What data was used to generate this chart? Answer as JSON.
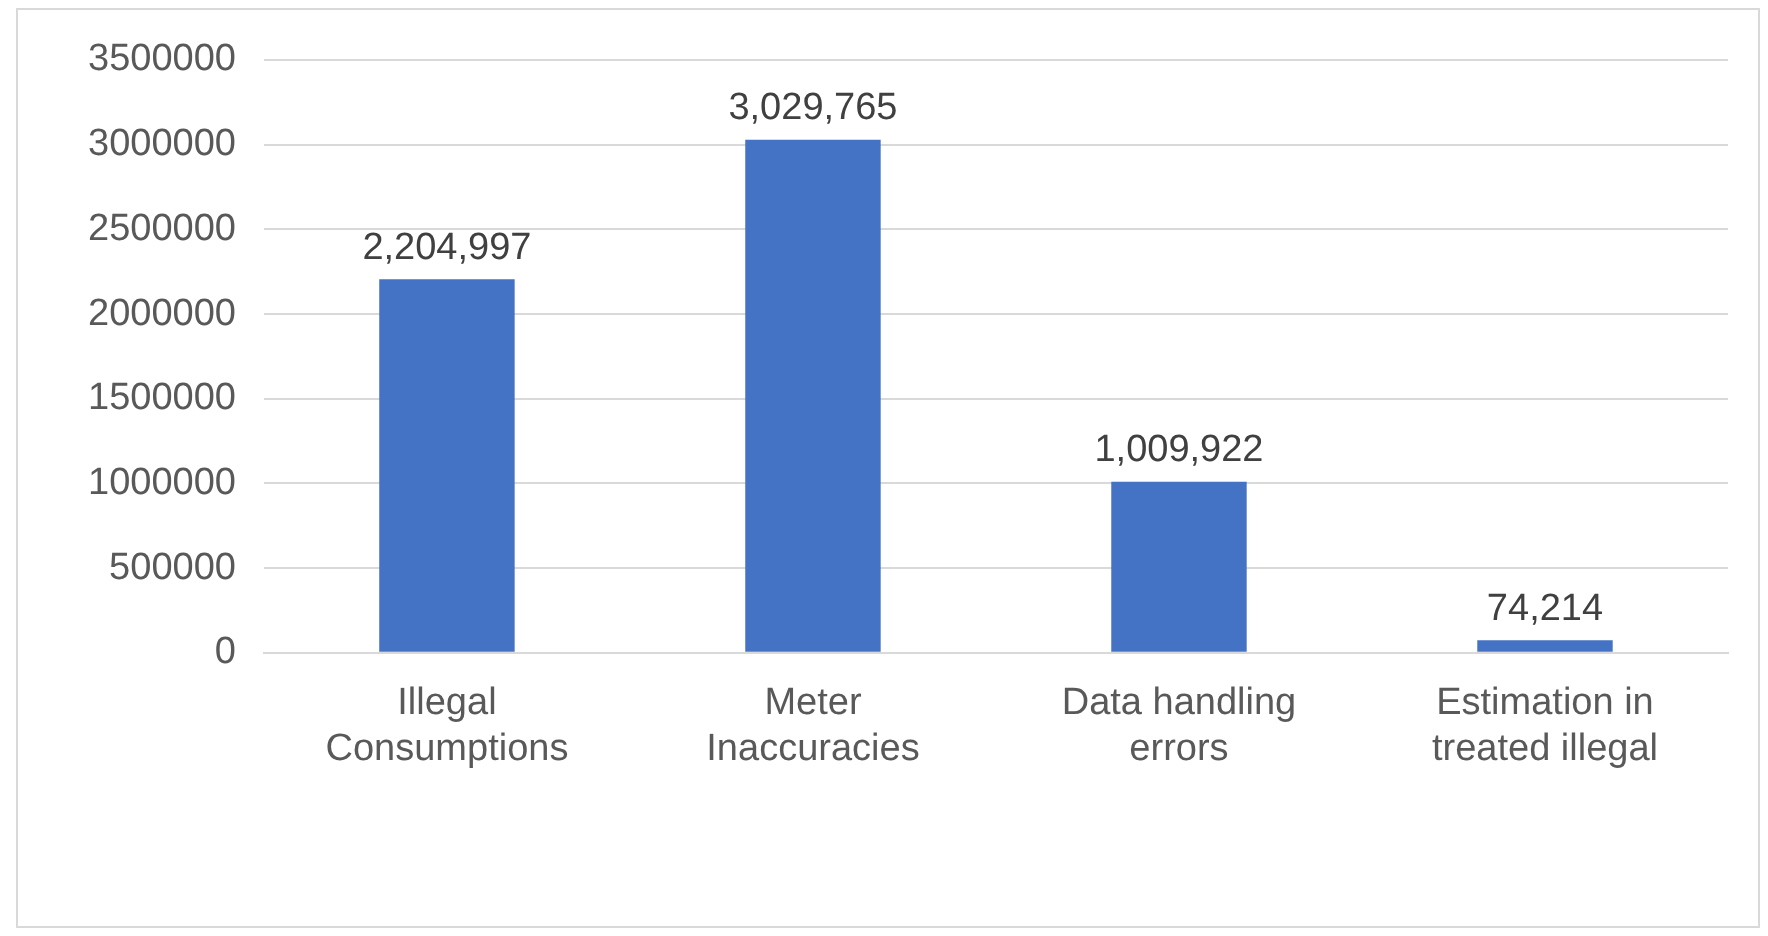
{
  "chart_data": {
    "type": "bar",
    "categories": [
      "Illegal Consumptions",
      "Meter Inaccuracies",
      "Data handling errors",
      "Estimation in treated illegal"
    ],
    "values": [
      2204997,
      3029765,
      1009922,
      74214
    ],
    "color": "#4472c4",
    "value_labels": [
      "2,204,997",
      "3,029,765",
      "1,009,922",
      "74,214"
    ],
    "ylim": [
      0,
      3500000
    ],
    "yticks": [
      0,
      500000,
      1000000,
      1500000,
      2000000,
      2500000,
      3000000,
      3500000
    ],
    "grid": "y",
    "legend": false
  }
}
